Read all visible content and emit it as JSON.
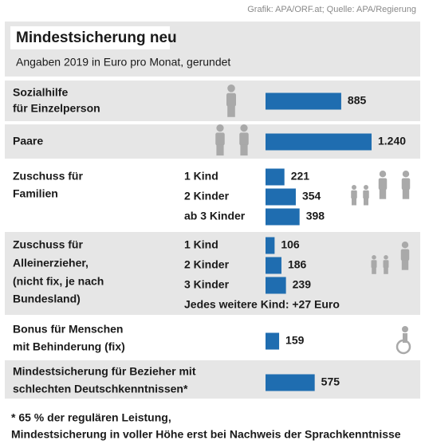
{
  "chart_data": {
    "type": "bar",
    "source": "Grafik: APA/ORF.at; Quelle: APA/Regierung",
    "title": "Mindestsicherung neu",
    "subtitle": "Angaben 2019 in Euro pro Monat, gerundet",
    "color": "#1f6db0",
    "groups": [
      {
        "label": [
          "Sozialhilfe",
          "für Einzelperson"
        ],
        "values": [
          885
        ]
      },
      {
        "label": [
          "Paare"
        ],
        "values": [
          1240
        ],
        "value_labels": [
          "1.240"
        ]
      },
      {
        "label": [
          "Zuschuss für",
          "Familien"
        ],
        "sublabels": [
          "1 Kind",
          "2 Kinder",
          "ab 3 Kinder"
        ],
        "values": [
          221,
          354,
          398
        ]
      },
      {
        "label": [
          "Zuschuss für",
          "Alleinerzieher,",
          "(nicht fix, je nach",
          "Bundesland)"
        ],
        "sublabels": [
          "1 Kind",
          "2 Kinder",
          "3 Kinder"
        ],
        "values": [
          106,
          186,
          239
        ],
        "note": "Jedes weitere Kind: +27 Euro"
      },
      {
        "label": [
          "Bonus für Menschen",
          "mit Behinderung (fix)"
        ],
        "values": [
          159
        ]
      },
      {
        "label": [
          "Mindestsicherung für Bezieher mit",
          "schlechten Deutschkenntnissen*"
        ],
        "values": [
          575
        ]
      }
    ],
    "footnote": [
      "* 65 % der regulären Leistung,",
      "Mindestsicherung in voller Höhe erst bei Nachweis der Sprachkenntnisse"
    ]
  }
}
